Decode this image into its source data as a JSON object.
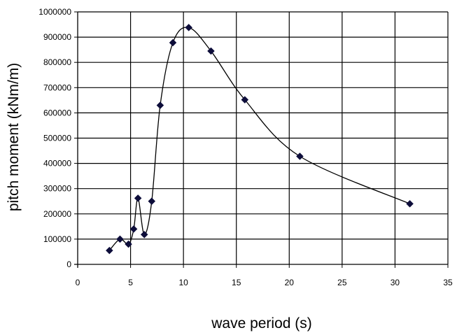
{
  "chart_data": {
    "type": "scatter",
    "xlabel": "wave period (s)",
    "ylabel": "pitch moment (kNm/m)",
    "xlim": [
      0,
      35
    ],
    "ylim": [
      0,
      1000000
    ],
    "xticks": [
      0,
      5,
      10,
      15,
      20,
      25,
      30,
      35
    ],
    "yticks": [
      0,
      100000,
      200000,
      300000,
      400000,
      500000,
      600000,
      700000,
      800000,
      900000,
      1000000
    ],
    "xtick_labels": [
      "0",
      "5",
      "10",
      "15",
      "20",
      "25",
      "30",
      "35"
    ],
    "ytick_labels": [
      "0",
      "100000",
      "200000",
      "300000",
      "400000",
      "500000",
      "600000",
      "700000",
      "800000",
      "900000",
      "1000000"
    ],
    "grid": true,
    "smooth_line": true,
    "series": [
      {
        "x": [
          3.0,
          4.0,
          4.8,
          5.3,
          5.7,
          6.3,
          7.0,
          7.8,
          9.0,
          10.5,
          12.6,
          15.8,
          21.0,
          31.4
        ],
        "y": [
          55000,
          100000,
          80000,
          140000,
          262000,
          118000,
          250000,
          630000,
          878000,
          938000,
          845000,
          652000,
          428000,
          240000
        ],
        "color": "#0d0d3a"
      }
    ]
  }
}
